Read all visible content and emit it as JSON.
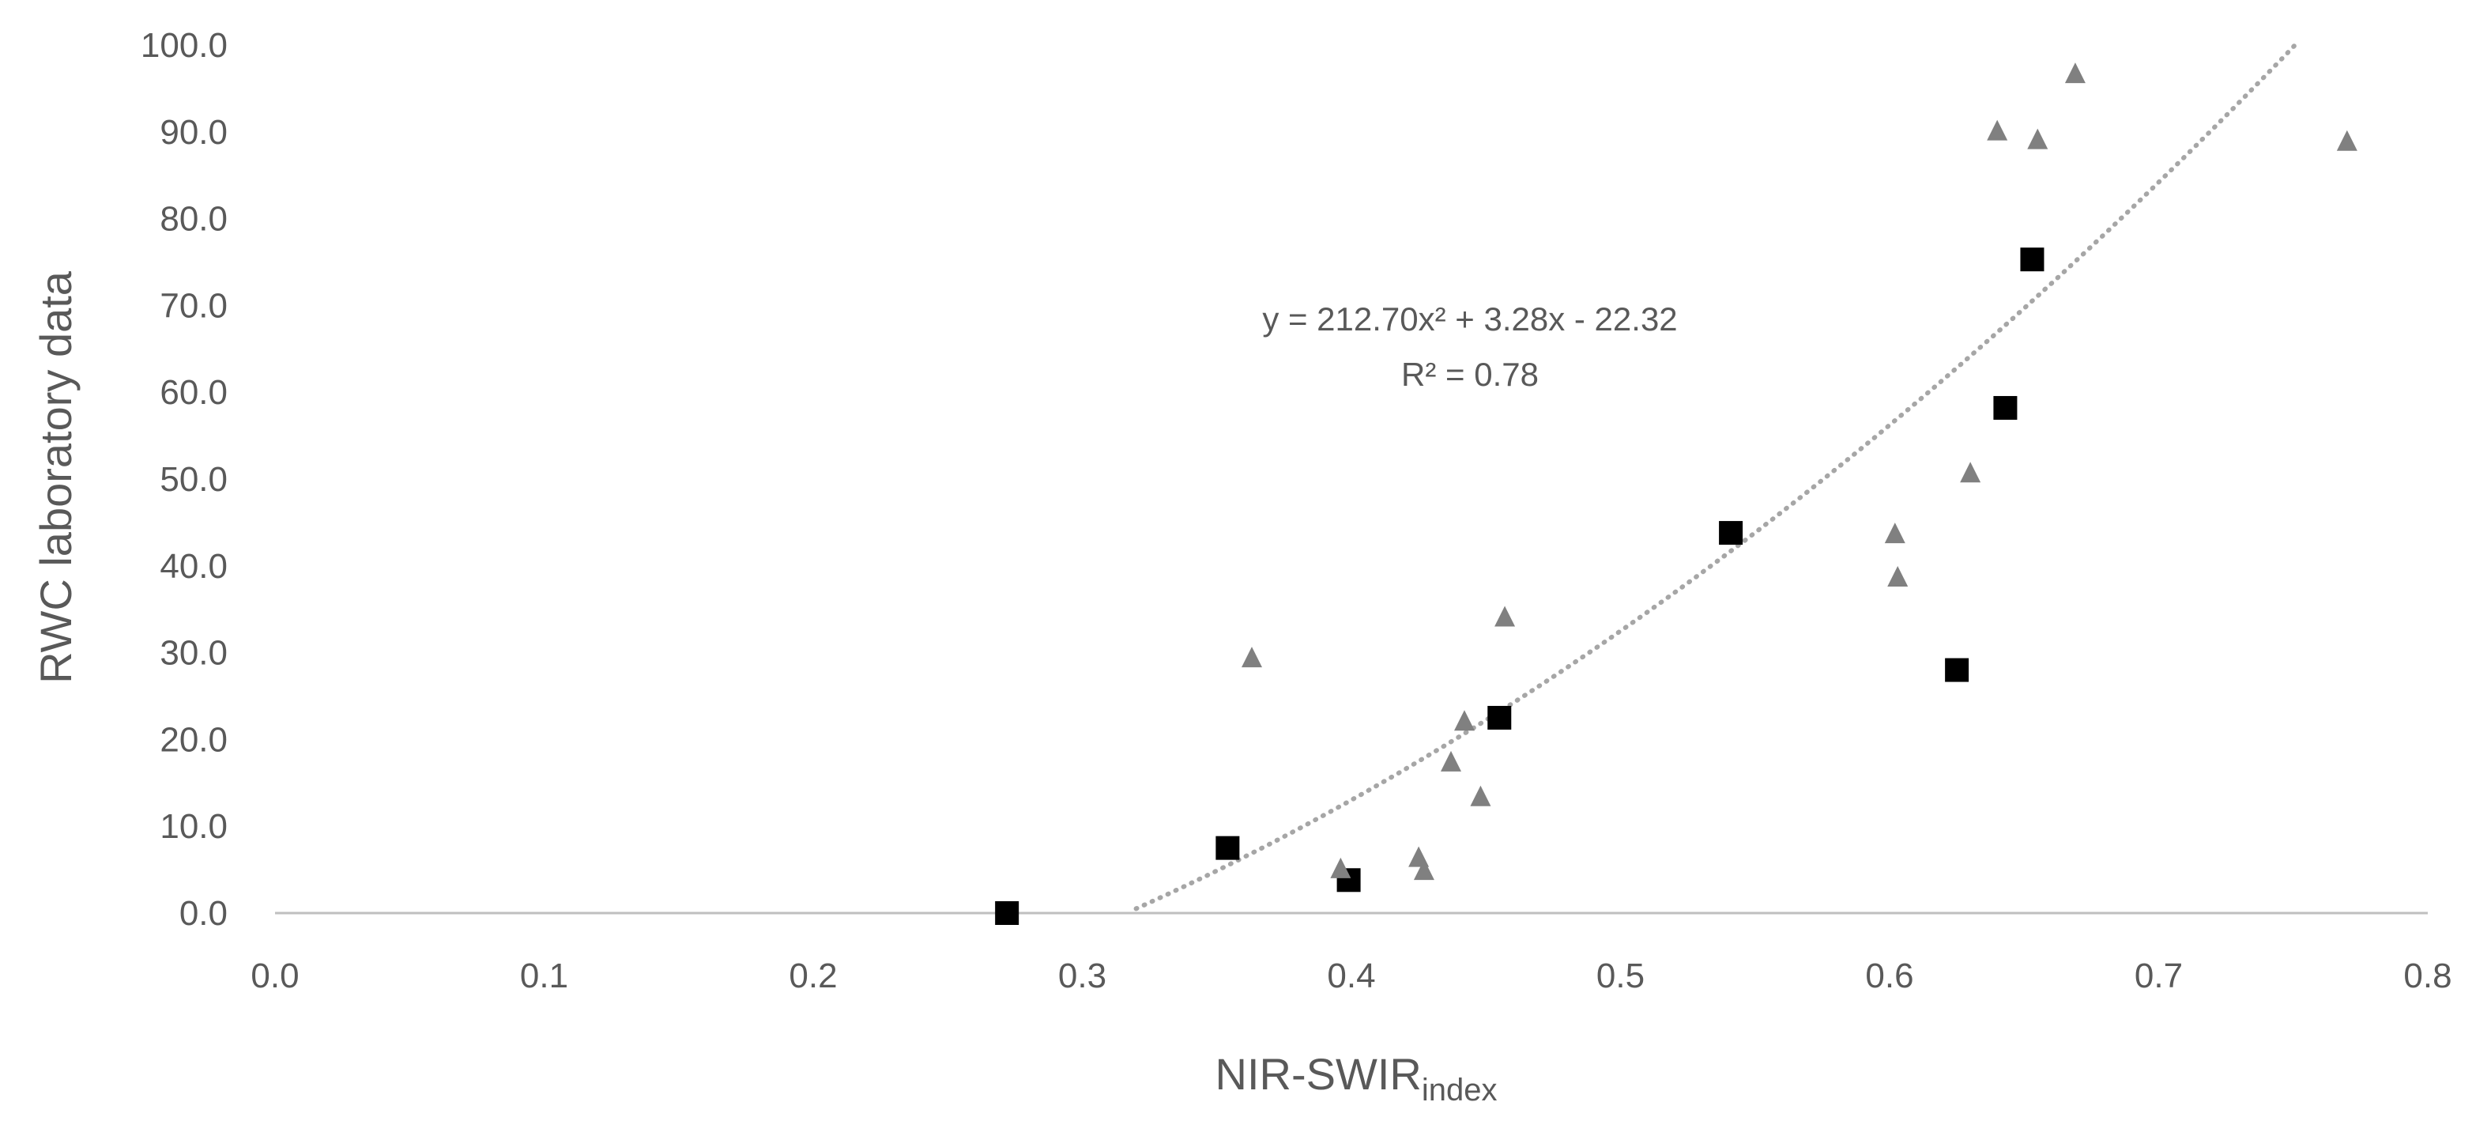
{
  "chart_data": {
    "type": "scatter",
    "title": "",
    "xlabel": "NIR-SWIR",
    "xlabel_subscript": "index",
    "ylabel": "RWC laboratory data",
    "xlim": [
      0,
      0.8
    ],
    "ylim": [
      0,
      100
    ],
    "x_ticks": [
      "0.0",
      "0.1",
      "0.2",
      "0.3",
      "0.4",
      "0.5",
      "0.6",
      "0.7",
      "0.8"
    ],
    "y_ticks": [
      "0.0",
      "10.0",
      "20.0",
      "30.0",
      "40.0",
      "50.0",
      "60.0",
      "70.0",
      "80.0",
      "90.0",
      "100.0"
    ],
    "grid": false,
    "legend": "none",
    "series": [
      {
        "marker": "square",
        "color": "#000000",
        "points": [
          [
            0.272,
            0.0
          ],
          [
            0.354,
            7.5
          ],
          [
            0.399,
            3.8
          ],
          [
            0.455,
            22.5
          ],
          [
            0.541,
            43.8
          ],
          [
            0.625,
            28.0
          ],
          [
            0.643,
            58.2
          ],
          [
            0.653,
            75.3
          ]
        ]
      },
      {
        "marker": "triangle",
        "color": "#808080",
        "points": [
          [
            0.363,
            29.5
          ],
          [
            0.396,
            5.2
          ],
          [
            0.425,
            6.5
          ],
          [
            0.427,
            5.0
          ],
          [
            0.437,
            17.5
          ],
          [
            0.442,
            22.2
          ],
          [
            0.448,
            13.5
          ],
          [
            0.457,
            34.2
          ],
          [
            0.602,
            43.8
          ],
          [
            0.603,
            38.8
          ],
          [
            0.63,
            50.8
          ],
          [
            0.64,
            90.2
          ],
          [
            0.655,
            89.2
          ],
          [
            0.669,
            96.8
          ],
          [
            0.77,
            89.0
          ]
        ]
      }
    ],
    "trendline": {
      "type": "polynomial",
      "coefficients": [
        212.7,
        3.28,
        -22.32
      ],
      "x_range": [
        0.32,
        0.752
      ],
      "color": "#a6a6a6",
      "style": "dotted"
    },
    "annotations": {
      "equation": "y = 212.70x² + 3.28x - 22.32",
      "r_squared": "R² = 0.78"
    }
  }
}
